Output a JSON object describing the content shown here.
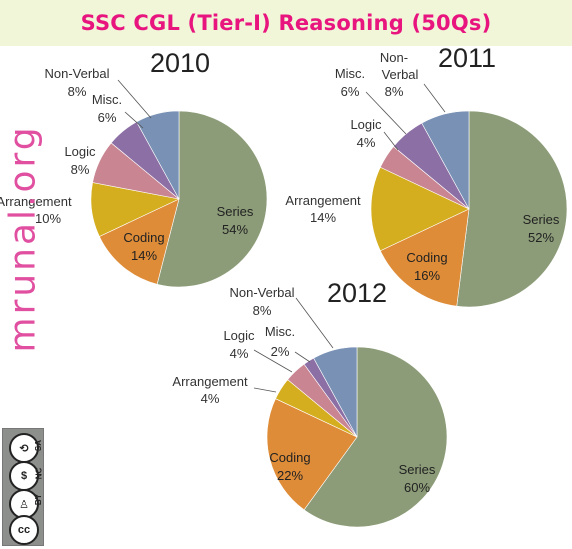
{
  "title": "SSC CGL (Tier-I) Reasoning (50Qs)",
  "brand_text": "mrunal.org",
  "license_icons": [
    "cc-icon",
    "by-icon",
    "nc-icon",
    "sa-icon"
  ],
  "license_tags": [
    "BY",
    "NC",
    "SA"
  ],
  "chart_data": [
    {
      "type": "pie",
      "title": "2010",
      "slices": [
        {
          "label": "Series",
          "value": 54,
          "pct": "54%",
          "color": "#8c9c78"
        },
        {
          "label": "Coding",
          "value": 14,
          "pct": "14%",
          "color": "#de8c38"
        },
        {
          "label": "Arrangement",
          "value": 10,
          "pct": "10%",
          "color": "#d4ae1f"
        },
        {
          "label": "Logic",
          "value": 8,
          "pct": "8%",
          "color": "#c98591"
        },
        {
          "label": "Misc.",
          "value": 6,
          "pct": "6%",
          "color": "#8c6fa5"
        },
        {
          "label": "Non-Verbal",
          "value": 8,
          "pct": "8%",
          "color": "#7891b5"
        }
      ]
    },
    {
      "type": "pie",
      "title": "2011",
      "slices": [
        {
          "label": "Series",
          "value": 52,
          "pct": "52%",
          "color": "#8c9c78"
        },
        {
          "label": "Coding",
          "value": 16,
          "pct": "16%",
          "color": "#de8c38"
        },
        {
          "label": "Arrangement",
          "value": 14,
          "pct": "14%",
          "color": "#d4ae1f"
        },
        {
          "label": "Logic",
          "value": 4,
          "pct": "4%",
          "color": "#c98591"
        },
        {
          "label": "Misc.",
          "value": 6,
          "pct": "6%",
          "color": "#8c6fa5"
        },
        {
          "label": "Non-Verbal",
          "value": 8,
          "pct": "8%",
          "color": "#7891b5"
        }
      ]
    },
    {
      "type": "pie",
      "title": "2012",
      "slices": [
        {
          "label": "Series",
          "value": 60,
          "pct": "60%",
          "color": "#8c9c78"
        },
        {
          "label": "Coding",
          "value": 22,
          "pct": "22%",
          "color": "#de8c38"
        },
        {
          "label": "Arrangement",
          "value": 4,
          "pct": "4%",
          "color": "#d4ae1f"
        },
        {
          "label": "Logic",
          "value": 4,
          "pct": "4%",
          "color": "#c98591"
        },
        {
          "label": "Misc.",
          "value": 2,
          "pct": "2%",
          "color": "#8c6fa5"
        },
        {
          "label": "Non-Verbal",
          "value": 8,
          "pct": "8%",
          "color": "#7891b5"
        }
      ]
    }
  ]
}
